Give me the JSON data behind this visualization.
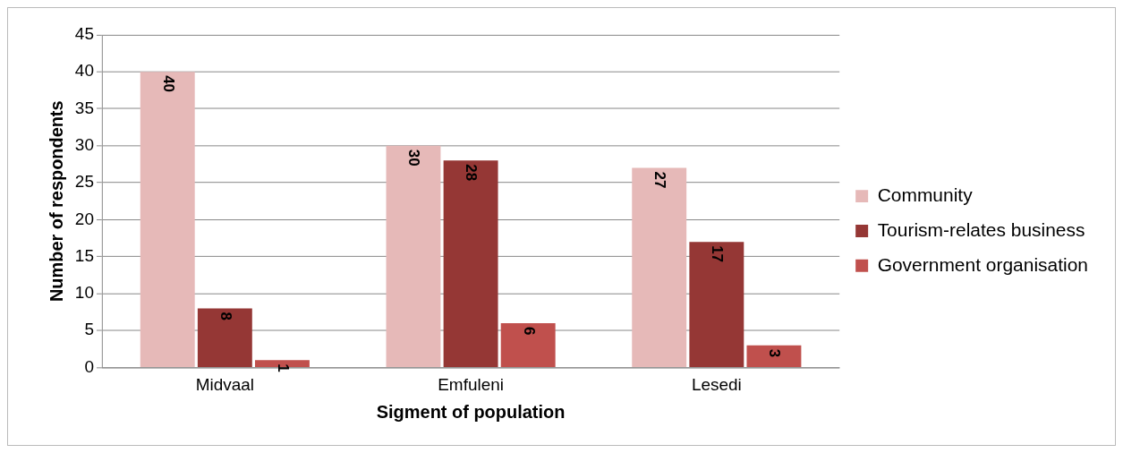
{
  "chart_data": {
    "type": "bar",
    "xlabel": "Sigment of population",
    "ylabel": "Number of respondents",
    "categories": [
      "Midvaal",
      "Emfuleni",
      "Lesedi"
    ],
    "series": [
      {
        "name": "Community",
        "color": "#e6b9b8",
        "values": [
          40,
          30,
          27
        ]
      },
      {
        "name": "Tourism-relates business",
        "color": "#953735",
        "values": [
          8,
          28,
          17
        ]
      },
      {
        "name": "Government organisation",
        "color": "#c0504d",
        "values": [
          1,
          6,
          3
        ]
      }
    ],
    "ylim": [
      0,
      45
    ],
    "yticks": [
      0,
      5,
      10,
      15,
      20,
      25,
      30,
      35,
      40,
      45
    ],
    "grid": "y",
    "legend": "right",
    "data_labels": true
  }
}
